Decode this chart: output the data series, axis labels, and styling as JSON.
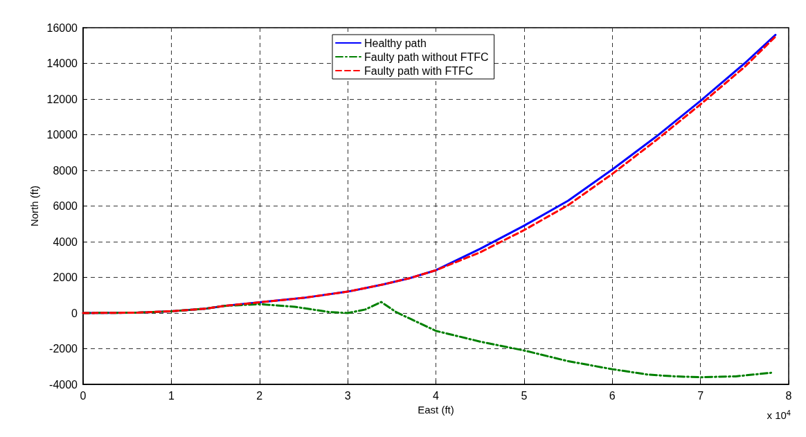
{
  "chart_data": {
    "type": "line",
    "xlabel": "East (ft)",
    "ylabel": "North (ft)",
    "xlim": [
      0,
      8
    ],
    "xticks": [
      0,
      1,
      2,
      3,
      4,
      5,
      6,
      7,
      8
    ],
    "ylim": [
      -4000,
      16000
    ],
    "yticks": [
      -4000,
      -2000,
      0,
      2000,
      4000,
      6000,
      8000,
      10000,
      12000,
      14000,
      16000
    ],
    "grid": true,
    "legend": "top",
    "marker": "none",
    "annotations": [
      "x 10$^{4}$"
    ],
    "series": [
      {
        "name": "Healthy path",
        "color": "#0000ff",
        "line_style": "solid",
        "x": [
          0,
          0.6,
          1,
          1.4,
          1.6,
          2,
          2.5,
          3,
          3.4,
          3.7,
          4,
          4.5,
          5,
          5.5,
          6,
          6.5,
          7,
          7.5,
          7.85
        ],
        "values": [
          0,
          20,
          100,
          250,
          400,
          600,
          850,
          1200,
          1600,
          1950,
          2400,
          3600,
          4900,
          6300,
          8050,
          9900,
          11900,
          14000,
          15600
        ]
      },
      {
        "name": "Faulty path without FTFC",
        "color": "#008000",
        "line_style": "dashdot",
        "x": [
          0,
          0.6,
          1,
          1.4,
          1.6,
          2,
          2.4,
          2.8,
          3,
          3.2,
          3.38,
          3.55,
          3.7,
          4,
          4.5,
          4.7,
          5,
          5.5,
          6,
          6.4,
          6.7,
          7,
          7.4,
          7.8
        ],
        "values": [
          0,
          20,
          100,
          250,
          400,
          500,
          350,
          50,
          0,
          200,
          620,
          50,
          -300,
          -1000,
          -1600,
          -1800,
          -2100,
          -2700,
          -3150,
          -3450,
          -3550,
          -3600,
          -3550,
          -3350
        ]
      },
      {
        "name": "Faulty path with FTFC",
        "color": "#ff0000",
        "line_style": "dashed",
        "x": [
          0,
          0.6,
          1,
          1.4,
          1.6,
          2,
          2.5,
          3,
          3.4,
          3.7,
          4,
          4.5,
          5,
          5.5,
          6,
          6.5,
          7,
          7.5,
          7.85
        ],
        "values": [
          0,
          20,
          100,
          250,
          400,
          600,
          850,
          1200,
          1600,
          1950,
          2400,
          3400,
          4650,
          6050,
          7800,
          9700,
          11700,
          13800,
          15500
        ]
      }
    ]
  }
}
